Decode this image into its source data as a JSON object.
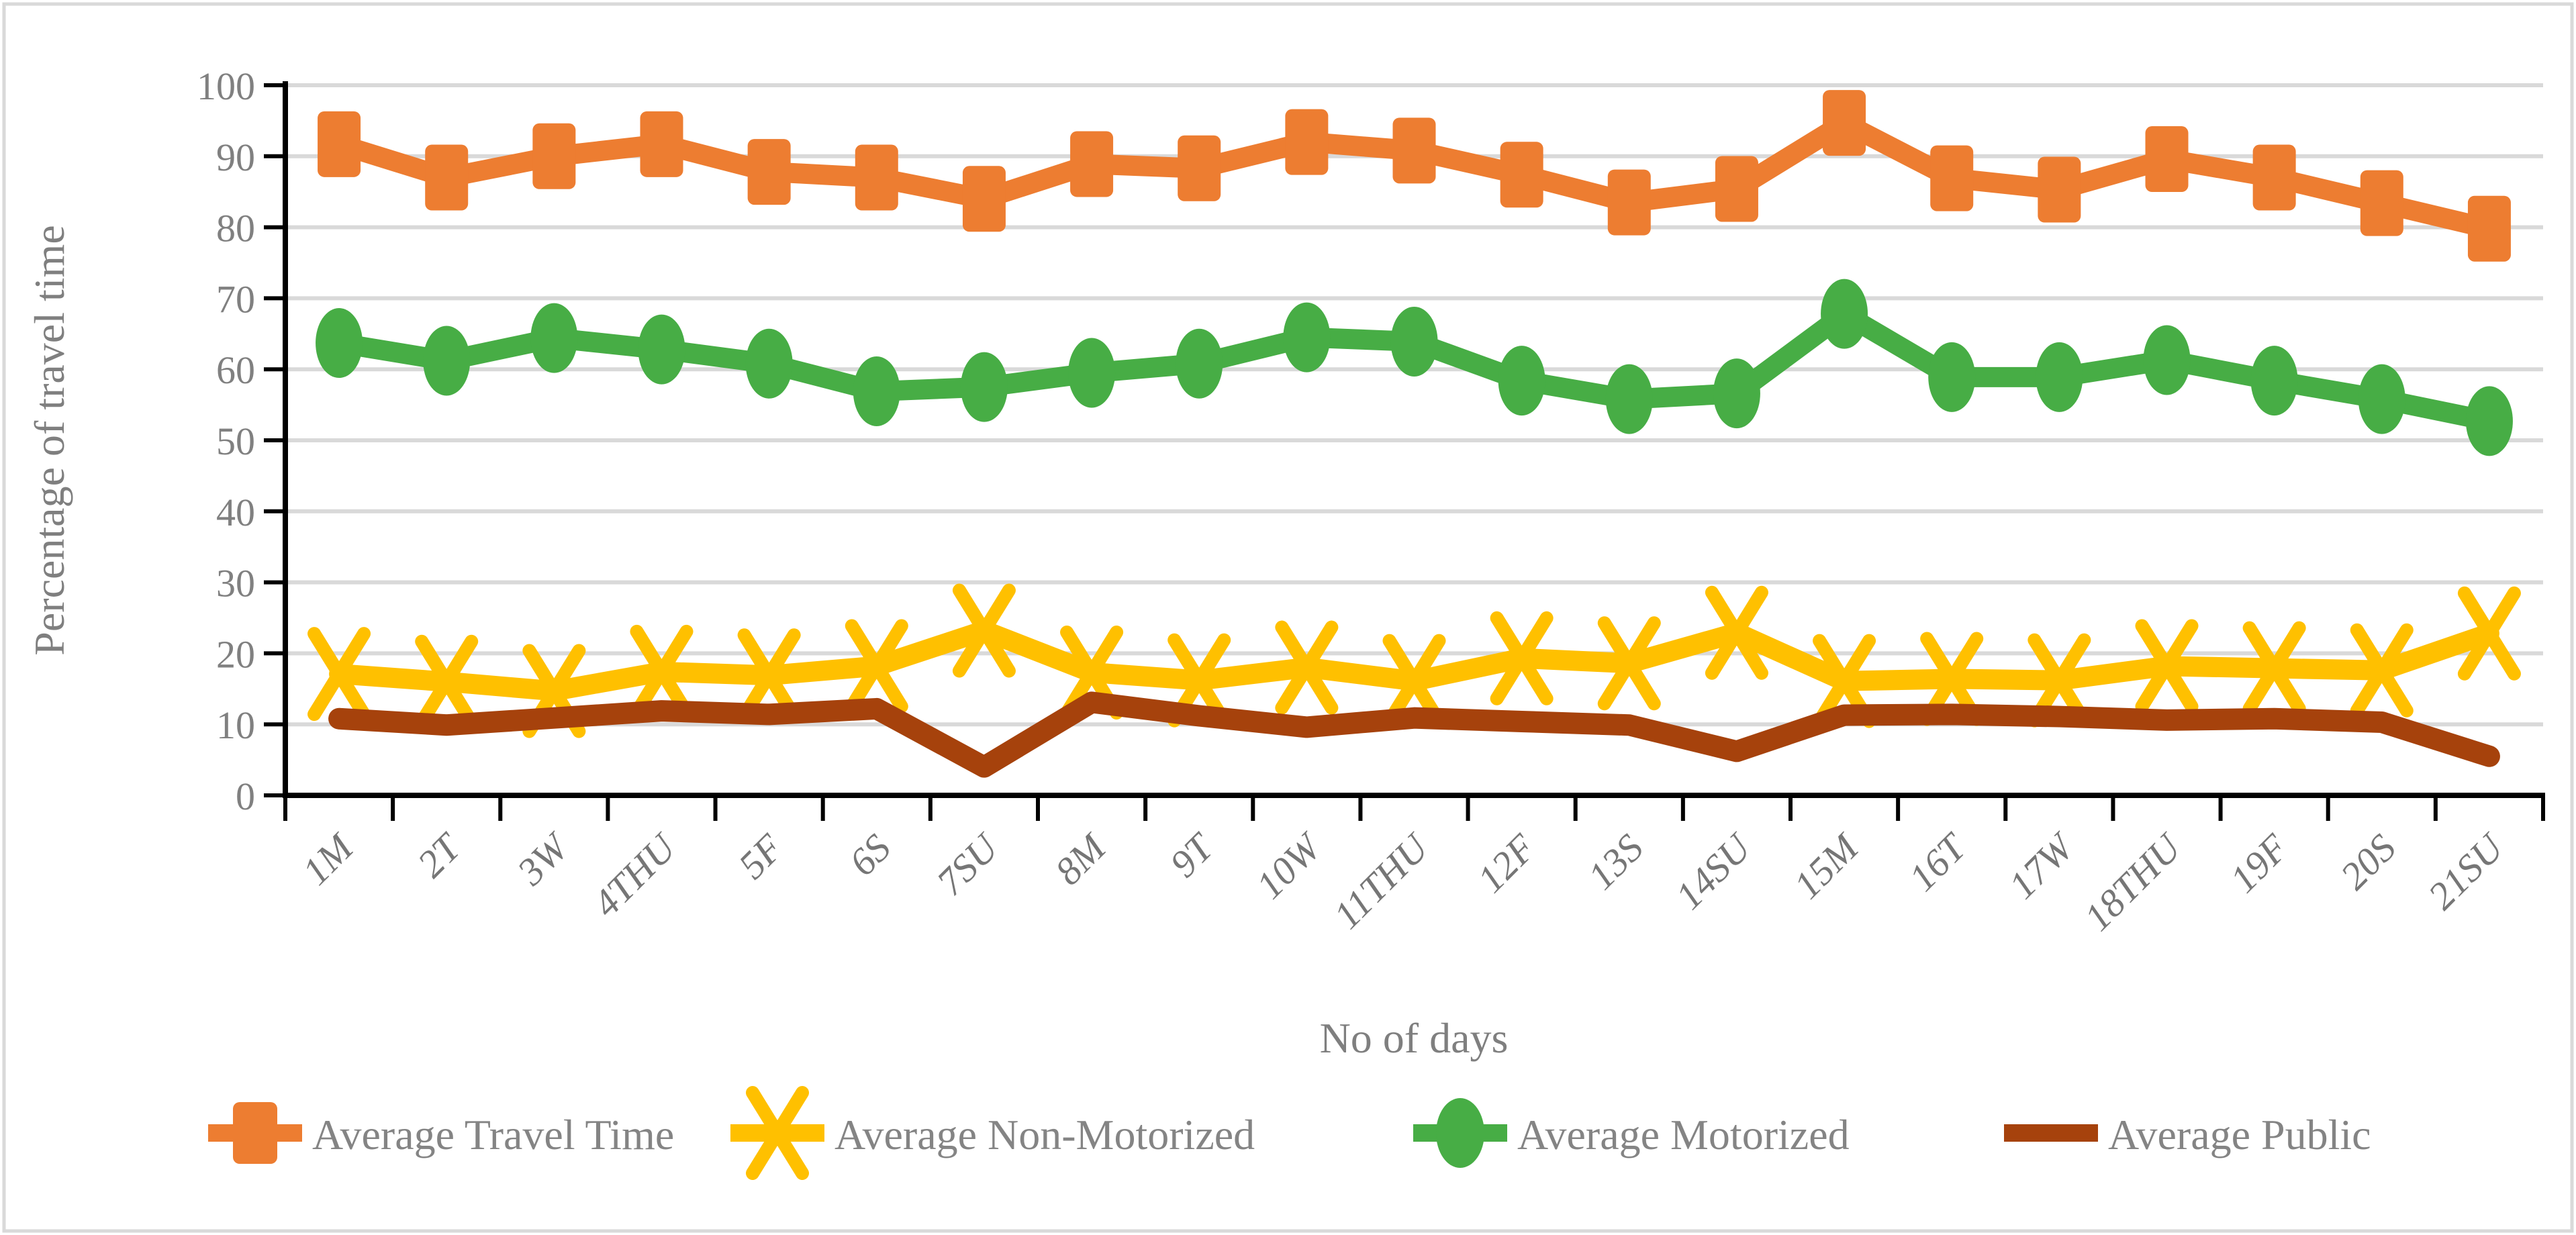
{
  "figure": {
    "background": "#FFFFFF",
    "border_color": "#D9D9D9",
    "gridline_color": "#D9D9D9",
    "axis_color": "#000000",
    "label_color": "#7F7F7F"
  },
  "chart_data": {
    "type": "line",
    "title": "",
    "xlabel": "No of days",
    "ylabel": "Percentage of travel time",
    "ylim": [
      0,
      100
    ],
    "yticks": [
      0,
      10,
      20,
      30,
      40,
      50,
      60,
      70,
      80,
      90,
      100
    ],
    "grid": true,
    "legend_position": "bottom",
    "categories": [
      "1M",
      "2T",
      "3W",
      "4THU",
      "5F",
      "6S",
      "7SU",
      "8M",
      "9T",
      "10W",
      "11THU",
      "12F",
      "13S",
      "14SU",
      "15M",
      "16T",
      "17W",
      "18THU",
      "19F",
      "20S",
      "21SU"
    ],
    "series": [
      {
        "name": "Average Travel Time",
        "color": "#ED7D31",
        "marker": "square",
        "values": [
          91.7,
          87.0,
          90.0,
          91.7,
          87.8,
          87.0,
          84.0,
          88.9,
          88.3,
          92.0,
          90.8,
          87.4,
          83.5,
          85.4,
          94.7,
          86.9,
          85.3,
          89.6,
          87.0,
          83.4,
          79.8
        ]
      },
      {
        "name": "Average Non-Motorized",
        "color": "#FFC000",
        "marker": "x",
        "values": [
          17.1,
          16.0,
          14.7,
          17.4,
          16.9,
          18.2,
          23.2,
          17.3,
          16.2,
          18.0,
          16.1,
          19.3,
          18.6,
          22.9,
          16.1,
          16.4,
          16.2,
          18.2,
          17.9,
          17.6,
          22.8
        ]
      },
      {
        "name": "Average Motorized",
        "color": "#47AD45",
        "marker": "circle",
        "values": [
          63.7,
          61.2,
          64.4,
          62.8,
          60.8,
          56.9,
          57.5,
          59.5,
          60.8,
          64.5,
          63.9,
          58.4,
          55.8,
          56.6,
          67.8,
          58.9,
          58.9,
          61.3,
          58.4,
          55.8,
          52.7
        ]
      },
      {
        "name": "Average Public",
        "color": "#A6420C",
        "marker": "none",
        "values": [
          10.8,
          9.9,
          10.9,
          11.9,
          11.4,
          12.2,
          4.0,
          13.1,
          11.2,
          9.6,
          10.9,
          10.4,
          9.9,
          6.2,
          11.3,
          11.4,
          11.1,
          10.6,
          10.8,
          10.3,
          5.5
        ]
      }
    ]
  }
}
